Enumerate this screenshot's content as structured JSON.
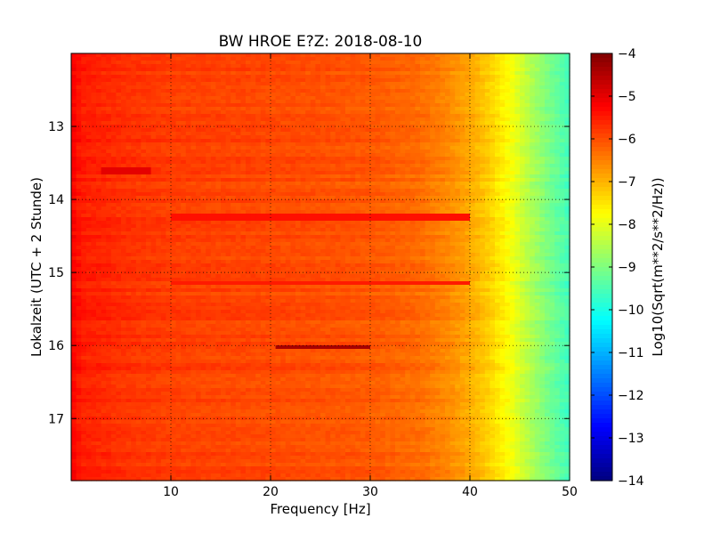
{
  "chart_data": {
    "type": "heatmap",
    "title": "BW HROE E?Z: 2018-08-10",
    "xlabel": "Frequency [Hz]",
    "ylabel": "Lokalzeit (UTC + 2 Stunde)",
    "xlim": [
      0,
      50
    ],
    "ylim": [
      12.0,
      17.85
    ],
    "y_inverted": true,
    "grid": true,
    "xticks": [
      10,
      20,
      30,
      40,
      50
    ],
    "yticks": [
      13,
      14,
      15,
      16,
      17
    ],
    "colorbar": {
      "label": "Log10(Sqrt(m**2/s**2/Hz))",
      "range": [
        -14,
        -4
      ],
      "ticks": [
        -4,
        -5,
        -6,
        -7,
        -8,
        -9,
        -10,
        -11,
        -12,
        -13,
        -14
      ],
      "colormap": "jet"
    },
    "level_profile": {
      "frequency_hz": [
        0,
        1,
        5,
        10,
        20,
        30,
        35,
        38,
        40,
        42,
        44,
        46,
        48,
        50
      ],
      "log10_amplitude": [
        -5.2,
        -5.5,
        -5.7,
        -5.85,
        -5.95,
        -6.1,
        -6.3,
        -6.6,
        -6.9,
        -7.3,
        -7.8,
        -8.5,
        -9.1,
        -9.6
      ]
    },
    "features": [
      {
        "name": "narrow band",
        "f_start": 20.5,
        "f_end": 29.8,
        "time": 16.02,
        "log10_amplitude": -4.4
      },
      {
        "name": "strong row",
        "f_start": 3,
        "f_end": 8,
        "time": 13.6,
        "log10_amplitude": -5.0
      },
      {
        "name": "strong row",
        "f_start": 10,
        "f_end": 40,
        "time": 14.25,
        "log10_amplitude": -5.4
      },
      {
        "name": "strong row",
        "f_start": 10,
        "f_end": 40,
        "time": 15.15,
        "log10_amplitude": -5.5
      }
    ]
  }
}
